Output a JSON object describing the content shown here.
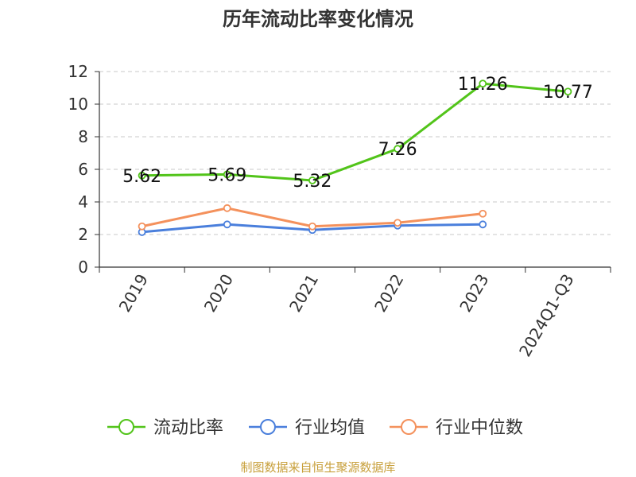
{
  "chart_data": {
    "type": "line",
    "title": "历年流动比率变化情况",
    "categories": [
      "2019",
      "2020",
      "2021",
      "2022",
      "2023",
      "2024Q1-Q3"
    ],
    "series": [
      {
        "name": "流动比率",
        "color": "#52c41a",
        "values": [
          5.62,
          5.69,
          5.32,
          7.26,
          11.26,
          10.77
        ],
        "labels": [
          "5.62",
          "5.69",
          "5.32",
          "7.26",
          "11.26",
          "10.77"
        ]
      },
      {
        "name": "行业均值",
        "color": "#4a7fdc",
        "values": [
          2.15,
          2.62,
          2.28,
          2.55,
          2.62,
          null
        ]
      },
      {
        "name": "行业中位数",
        "color": "#f4915c",
        "values": [
          2.5,
          3.62,
          2.5,
          2.72,
          3.28,
          null
        ]
      }
    ],
    "yticks": [
      "0",
      "2",
      "4",
      "6",
      "8",
      "10",
      "12"
    ],
    "ylim": [
      0,
      12
    ],
    "grid": true,
    "legend_position": "bottom"
  },
  "footer": {
    "source": "制图数据来自恒生聚源数据库"
  }
}
